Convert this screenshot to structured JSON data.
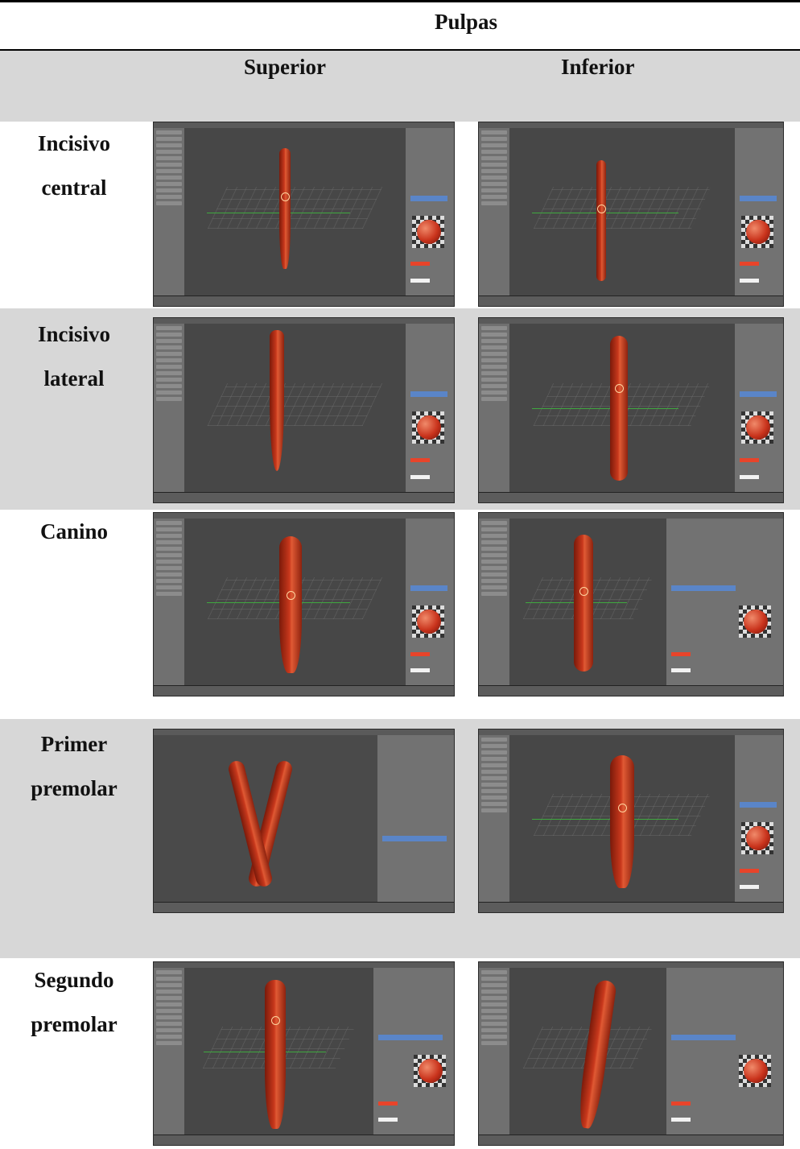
{
  "table": {
    "title": "Pulpas",
    "columns": {
      "superior": "Superior",
      "inferior": "Inferior"
    },
    "rows": [
      {
        "label_line1": "Incisivo",
        "label_line2": "central"
      },
      {
        "label_line1": "Incisivo",
        "label_line2": "lateral"
      },
      {
        "label_line1": "Canino",
        "label_line2": ""
      },
      {
        "label_line1": "Primer",
        "label_line2": "premolar"
      },
      {
        "label_line1": "Segundo",
        "label_line2": "premolar"
      }
    ]
  },
  "colors": {
    "header_band": "#d7d7d7",
    "pulp_red": "#c8381c",
    "blender_panel": "#727272"
  }
}
